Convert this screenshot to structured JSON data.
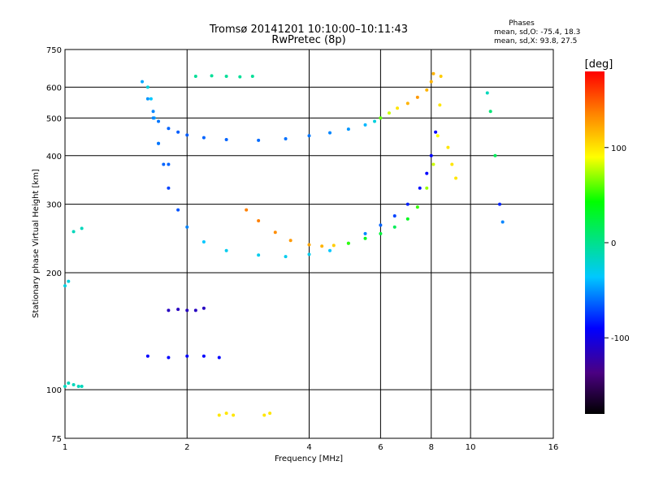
{
  "header": {
    "title_line1": "Tromsø 20141201 10:10:00–10:11:43",
    "title_line2": "RwPretec (8p)",
    "phases_title": "Phases",
    "phases_o": "mean, sd,O: -75.4, 18.3",
    "phases_x": "mean, sd,X:  93.8, 27.5"
  },
  "chart_data": {
    "type": "scatter",
    "title": "Tromsø 20141201 10:10:00–10:11:43",
    "subtitle": "RwPretec (8p)",
    "xlabel": "Frequency [MHz]",
    "ylabel": "Stationary phase Virtual Height [km]",
    "xscale": "log",
    "yscale": "log",
    "xlim": [
      1,
      16
    ],
    "ylim": [
      75,
      750
    ],
    "x_ticks": [
      1,
      2,
      4,
      6,
      8,
      10,
      16
    ],
    "y_ticks": [
      75,
      100,
      200,
      300,
      400,
      500,
      600,
      750
    ],
    "x_gridlines": [
      2,
      4,
      6,
      8,
      10
    ],
    "y_gridlines": [
      100,
      200,
      300,
      400,
      500,
      600
    ],
    "colorbar": {
      "label": "[deg]",
      "ticks": [
        100,
        0,
        -100
      ],
      "range": [
        -180,
        180
      ],
      "colormap": "rainbow"
    },
    "series": [
      {
        "x": [
          1.65,
          1.7,
          1.8,
          1.9,
          2.0,
          2.2,
          2.5,
          3.0,
          3.5,
          4.0,
          4.5,
          5.0,
          5.5,
          5.8,
          6.0
        ],
        "values": [
          520,
          490,
          470,
          460,
          452,
          445,
          440,
          438,
          442,
          450,
          458,
          468,
          480,
          490,
          500
        ],
        "phase": [
          -60,
          -65,
          -70,
          -72,
          -72,
          -70,
          -70,
          -68,
          -66,
          -65,
          -60,
          -55,
          -45,
          -30,
          -10
        ]
      },
      {
        "x": [
          6.0,
          6.3,
          6.6,
          7.0,
          7.4,
          7.8,
          8.0,
          8.1
        ],
        "values": [
          500,
          515,
          530,
          545,
          565,
          590,
          620,
          650
        ],
        "phase": [
          60,
          80,
          100,
          120,
          130,
          120,
          120,
          120
        ]
      },
      {
        "x": [
          1.6,
          1.63,
          1.66,
          1.7,
          1.75,
          1.8,
          1.9,
          2.0,
          2.2,
          2.5,
          3.0,
          3.5,
          4.0,
          4.5,
          5.0,
          5.5,
          6.0,
          6.5,
          7.0,
          7.5,
          7.8,
          8.0,
          8.2
        ],
        "values": [
          600,
          560,
          500,
          430,
          380,
          330,
          290,
          262,
          240,
          228,
          222,
          220,
          223,
          228,
          238,
          252,
          265,
          280,
          300,
          330,
          360,
          400,
          460
        ],
        "phase": [
          -30,
          -40,
          -50,
          -60,
          -70,
          -80,
          -75,
          -60,
          -40,
          -35,
          -35,
          -35,
          -35,
          -40,
          -50,
          -60,
          -70,
          -80,
          -90,
          -95,
          -100,
          -100,
          -100
        ]
      },
      {
        "x": [
          2.8,
          3.0,
          3.3,
          3.6,
          4.0,
          4.3,
          4.6,
          5.0,
          5.5,
          6.0,
          6.5,
          7.0,
          7.4,
          7.8,
          8.1,
          8.3,
          8.4,
          8.45
        ],
        "values": [
          290,
          272,
          254,
          242,
          236,
          234,
          235,
          238,
          245,
          252,
          262,
          275,
          295,
          330,
          380,
          450,
          540,
          640
        ],
        "phase": [
          140,
          140,
          135,
          130,
          125,
          120,
          110,
          50,
          30,
          20,
          10,
          30,
          50,
          70,
          80,
          90,
          100,
          110
        ]
      },
      {
        "x": [
          1.55,
          1.6,
          1.65,
          1.7,
          1.8
        ],
        "values": [
          620,
          560,
          500,
          430,
          380
        ],
        "phase": [
          -50,
          -55,
          -60,
          -65,
          -70
        ]
      },
      {
        "x": [
          1.0,
          1.02,
          1.05,
          1.08,
          1.1
        ],
        "values": [
          102,
          104,
          103,
          102,
          102
        ],
        "phase": [
          -20,
          -20,
          -20,
          -20,
          -20
        ]
      },
      {
        "x": [
          1.0,
          1.02
        ],
        "values": [
          185,
          190
        ],
        "phase": [
          -30,
          -30
        ]
      },
      {
        "x": [
          1.05,
          1.1
        ],
        "values": [
          255,
          260
        ],
        "phase": [
          -20,
          -20
        ]
      },
      {
        "x": [
          2.1,
          2.3,
          2.5,
          2.7,
          2.9
        ],
        "values": [
          640,
          642,
          640,
          638,
          640
        ],
        "phase": [
          -10,
          -10,
          -10,
          -10,
          -10
        ]
      },
      {
        "x": [
          1.8,
          1.9,
          2.0,
          2.1,
          2.2
        ],
        "values": [
          160,
          161,
          160,
          160,
          162
        ],
        "phase": [
          -120,
          -120,
          -120,
          -120,
          -120
        ]
      },
      {
        "x": [
          1.6,
          1.8,
          2.0,
          2.2,
          2.4
        ],
        "values": [
          122,
          121,
          122,
          122,
          121
        ],
        "phase": [
          -100,
          -100,
          -100,
          -100,
          -100
        ]
      },
      {
        "x": [
          2.4,
          2.5,
          2.6,
          3.1,
          3.2
        ],
        "values": [
          86,
          87,
          86,
          86,
          87
        ],
        "phase": [
          100,
          100,
          100,
          100,
          100
        ]
      },
      {
        "x": [
          11.0,
          11.2,
          11.5,
          11.8,
          12.0
        ],
        "values": [
          580,
          520,
          400,
          300,
          270
        ],
        "phase": [
          -20,
          0,
          10,
          -90,
          -60
        ]
      },
      {
        "x": [
          8.8,
          9.0,
          9.2
        ],
        "values": [
          420,
          380,
          350
        ],
        "phase": [
          100,
          100,
          100
        ]
      }
    ]
  }
}
